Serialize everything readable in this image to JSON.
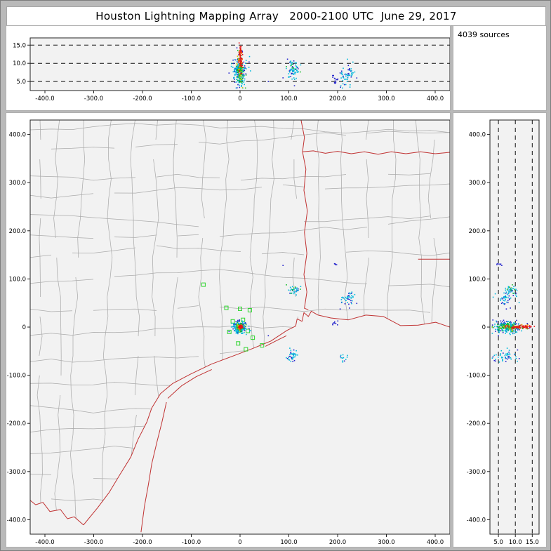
{
  "window": {
    "title": "Houston Lightning Mapping Array   2000-2100 UTC  June 29, 2017",
    "sources_count_label": "4039 sources"
  },
  "colors": {
    "window_background": "#b9b9b9",
    "panel_background": "#ffffff",
    "plot_background": "#f2f2f2",
    "frame": "#222222",
    "county_lines": "#ababab",
    "state_borders": "#c03232",
    "station_marker": "#2fd42f",
    "gridline": "#111111"
  },
  "chart_data": {
    "type": "scatter",
    "title": "Houston Lightning Mapping Array 2000-2100 UTC June 29, 2017",
    "total_sources": 4039,
    "palette": {
      "blue": "#2323cc",
      "cyan": "#00b8dc",
      "green": "#14bb28",
      "yellow": "#d9c400",
      "orange": "#f28500",
      "red": "#e61414"
    },
    "alt_axis": {
      "range_km": [
        2.5,
        17
      ],
      "gridlines": [
        5,
        10,
        15
      ],
      "tick_labels": [
        "5.0",
        "10.0",
        "15.0"
      ]
    },
    "ew_axis": {
      "range_km": [
        -430,
        430
      ],
      "tick_values": [
        -400,
        -300,
        -200,
        -100,
        0,
        100,
        200,
        300,
        400
      ],
      "tick_labels": [
        "-400.0",
        "-300.0",
        "-200.0",
        "-100.0",
        "0",
        "100.0",
        "200.0",
        "300.0",
        "400.0"
      ]
    },
    "ns_axis": {
      "range_km": [
        -430,
        430
      ],
      "tick_values": [
        400,
        300,
        200,
        100,
        0,
        -100,
        -200,
        -300,
        -400
      ],
      "tick_labels": [
        "400.0",
        "300.0",
        "200.0",
        "100.0",
        "0",
        "-100.0",
        "-200.0",
        "-300.0",
        "-400.0"
      ]
    },
    "stations_km": [
      [
        -75,
        88
      ],
      [
        -28,
        40
      ],
      [
        0,
        38
      ],
      [
        20,
        35
      ],
      [
        -15,
        12
      ],
      [
        6,
        15
      ],
      [
        -22,
        -10
      ],
      [
        -3,
        -7
      ],
      [
        16,
        -8
      ],
      [
        26,
        -22
      ],
      [
        -4,
        -34
      ],
      [
        45,
        -38
      ],
      [
        12,
        -46
      ]
    ],
    "clusters": [
      {
        "name": "houston-storm-blue",
        "n": 55,
        "ew": [
          0,
          8
        ],
        "ns": [
          1,
          7
        ],
        "alt": [
          9,
          2.5
        ],
        "colors": {
          "blue": 1
        }
      },
      {
        "name": "houston-storm-cyan",
        "n": 120,
        "ew": [
          -1,
          7
        ],
        "ns": [
          -2,
          6
        ],
        "alt": [
          7.5,
          1.8
        ],
        "colors": {
          "cyan": 1
        }
      },
      {
        "name": "houston-storm-green",
        "n": 95,
        "ew": [
          0,
          3.5
        ],
        "ns": [
          0,
          3.5
        ],
        "alt": [
          8.5,
          1.8
        ],
        "colors": {
          "green": 0.82,
          "yellow": 0.18
        }
      },
      {
        "name": "houston-storm-red",
        "n": 75,
        "ew": [
          1,
          2.2
        ],
        "ns": [
          0,
          2
        ],
        "alt": [
          11.5,
          1.9
        ],
        "colors": {
          "red": 0.75,
          "orange": 0.25
        }
      },
      {
        "name": "cell-northeast",
        "n": 35,
        "ew": [
          110,
          6
        ],
        "ns": [
          76,
          4
        ],
        "alt": [
          9,
          0.9
        ],
        "colors": {
          "cyan": 0.55,
          "green": 0.15,
          "blue": 0.3
        }
      },
      {
        "name": "cell-southeast",
        "n": 40,
        "ew": [
          108,
          5
        ],
        "ns": [
          -58,
          6
        ],
        "alt": [
          8,
          1.3
        ],
        "colors": {
          "cyan": 0.7,
          "blue": 0.3
        }
      },
      {
        "name": "cell-east",
        "n": 45,
        "ew": [
          220,
          8
        ],
        "ns": [
          58,
          8
        ],
        "alt": [
          7,
          1.6
        ],
        "colors": {
          "cyan": 0.5,
          "blue": 0.5
        }
      },
      {
        "name": "cell-east-low",
        "n": 12,
        "ew": [
          213,
          4
        ],
        "ns": [
          -66,
          5
        ],
        "alt": [
          5,
          1
        ],
        "colors": {
          "cyan": 0.6,
          "blue": 0.4
        }
      },
      {
        "name": "spot-a",
        "n": 8,
        "ew": [
          196,
          3
        ],
        "ns": [
          8,
          3
        ],
        "alt": [
          5.5,
          0.8
        ],
        "colors": {
          "blue": 1
        }
      },
      {
        "name": "spot-b",
        "n": 5,
        "ew": [
          195,
          2
        ],
        "ns": [
          129,
          2
        ],
        "alt": [
          5.5,
          0.8
        ],
        "colors": {
          "blue": 1
        }
      }
    ],
    "single_points": [
      [
        88,
        128,
        6,
        "blue"
      ],
      [
        58,
        -18,
        5,
        "blue"
      ]
    ],
    "map_borders_km": {
      "coastline": [
        [
          430,
          0
        ],
        [
          401,
          10
        ],
        [
          365,
          4
        ],
        [
          329,
          3
        ],
        [
          294,
          22
        ],
        [
          258,
          25
        ],
        [
          222,
          15
        ],
        [
          186,
          19
        ],
        [
          160,
          25
        ],
        [
          146,
          33
        ],
        [
          140,
          22
        ],
        [
          131,
          30
        ],
        [
          127,
          12
        ],
        [
          117,
          17
        ],
        [
          114,
          2
        ],
        [
          96,
          -7
        ],
        [
          63,
          -29
        ],
        [
          27,
          -44
        ],
        [
          -9,
          -58
        ],
        [
          -59,
          -77
        ],
        [
          -102,
          -98
        ],
        [
          -138,
          -117
        ],
        [
          -163,
          -138
        ],
        [
          -181,
          -168
        ],
        [
          -191,
          -197
        ],
        [
          -209,
          -233
        ],
        [
          -224,
          -270
        ],
        [
          -246,
          -306
        ],
        [
          -268,
          -343
        ],
        [
          -292,
          -375
        ],
        [
          -321,
          -411
        ]
      ],
      "rio_grande": [
        [
          -321,
          -411
        ],
        [
          -340,
          -394
        ],
        [
          -354,
          -398
        ],
        [
          -368,
          -379
        ],
        [
          -390,
          -383
        ],
        [
          -404,
          -364
        ],
        [
          -419,
          -369
        ],
        [
          -430,
          -360
        ]
      ],
      "tx_la_border": [
        [
          125,
          430
        ],
        [
          132,
          394
        ],
        [
          128,
          364
        ],
        [
          135,
          328
        ],
        [
          131,
          284
        ],
        [
          138,
          241
        ],
        [
          132,
          197
        ],
        [
          137,
          153
        ],
        [
          131,
          109
        ],
        [
          137,
          73
        ],
        [
          132,
          39
        ],
        [
          140,
          36
        ]
      ],
      "red_river": [
        [
          128,
          364
        ],
        [
          150,
          366
        ],
        [
          175,
          361
        ],
        [
          200,
          365
        ],
        [
          228,
          360
        ],
        [
          255,
          364
        ],
        [
          283,
          359
        ],
        [
          310,
          364
        ],
        [
          340,
          360
        ],
        [
          370,
          364
        ],
        [
          400,
          360
        ],
        [
          430,
          363
        ]
      ],
      "ar_la_border": [
        [
          365,
          141
        ],
        [
          430,
          141
        ]
      ],
      "barrier_islands": [
        [
          [
            -203,
            -426
          ],
          [
            -196,
            -372
          ],
          [
            -188,
            -328
          ],
          [
            -181,
            -284
          ],
          [
            -171,
            -241
          ],
          [
            -160,
            -197
          ],
          [
            -151,
            -156
          ]
        ],
        [
          [
            -148,
            -148
          ],
          [
            -120,
            -122
          ],
          [
            -90,
            -103
          ],
          [
            -58,
            -88
          ]
        ],
        [
          [
            52,
            -40
          ],
          [
            75,
            -28
          ],
          [
            95,
            -18
          ]
        ]
      ]
    }
  }
}
